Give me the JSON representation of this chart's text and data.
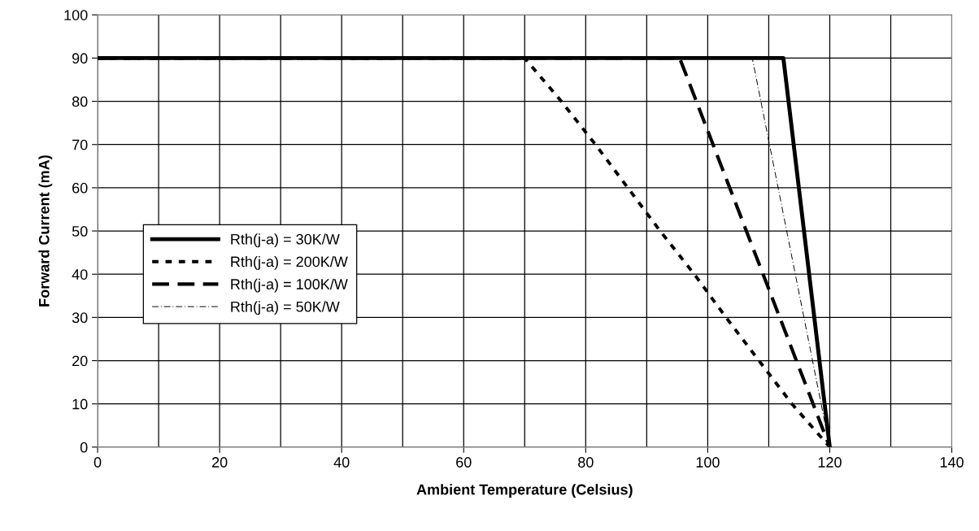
{
  "chart_data": {
    "type": "line",
    "xlabel": "Ambient Temperature (Celsius)",
    "ylabel": "Forward Current (mA)",
    "xlim": [
      0,
      140
    ],
    "xticks": [
      0,
      20,
      40,
      60,
      80,
      100,
      120,
      140
    ],
    "ylim": [
      0,
      100
    ],
    "yticks": [
      0,
      10,
      20,
      30,
      40,
      50,
      60,
      70,
      80,
      90,
      100
    ],
    "grid": true,
    "legend": "left",
    "marker": "none",
    "series": [
      {
        "name": "Rth(j-a) = 30K/W",
        "color": "#000000",
        "line_style": "solid",
        "x": [
          0,
          112.4,
          120
        ],
        "values": [
          90,
          90,
          0
        ]
      },
      {
        "name": "Rth(j-a) = 200K/W",
        "color": "#000000",
        "line_style": "dotted",
        "x": [
          0,
          70,
          76,
          81.6,
          86.9,
          92.2,
          97.8,
          103,
          108.4,
          113.8,
          120
        ],
        "values": [
          90,
          90,
          80,
          70,
          60,
          50,
          40,
          30,
          20,
          10,
          0
        ]
      },
      {
        "name": "Rth(j-a) = 100K/W",
        "color": "#000000",
        "line_style": "dashed",
        "x": [
          0,
          95.4,
          120
        ],
        "values": [
          90,
          90,
          0
        ]
      },
      {
        "name": "Rth(j-a) = 50K/W",
        "color": "#000000",
        "line_style": "dashed",
        "x": [
          0,
          107.3,
          120
        ],
        "values": [
          90,
          90,
          0
        ]
      }
    ]
  }
}
